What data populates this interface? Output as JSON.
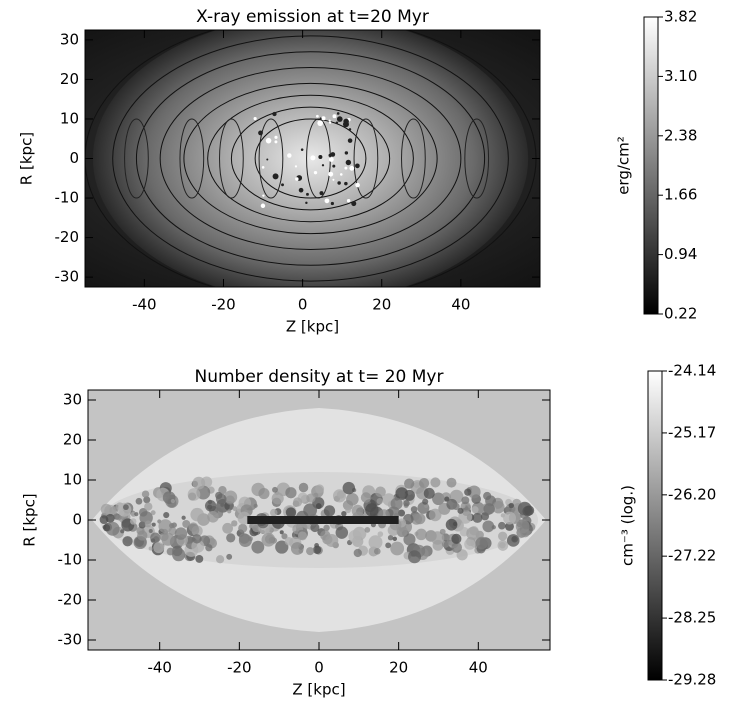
{
  "chart_data": [
    {
      "type": "heatmap",
      "title": "X-ray emission at t=20 Myr",
      "x_label": "Z [kpc]",
      "y_label": "R [kpc]",
      "xlim": [
        -55,
        60
      ],
      "ylim": [
        -32.5,
        32.5
      ],
      "xticks": [
        -40,
        -20,
        0,
        20,
        40
      ],
      "yticks": [
        -30,
        -20,
        -10,
        0,
        10,
        20,
        30
      ],
      "colormap": "gray",
      "colorbar": {
        "label": "erg/cm²",
        "lim": [
          0.22,
          3.82
        ],
        "ticks": [
          0.22,
          0.94,
          1.66,
          2.38,
          {
            "value": 3.1,
            "label": "3.10"
          },
          3.82
        ]
      }
    },
    {
      "type": "heatmap",
      "title": "Number density at t= 20 Myr",
      "x_label": "Z [kpc]",
      "y_label": "R [kpc]",
      "xlim": [
        -58,
        58
      ],
      "ylim": [
        -32.5,
        32.5
      ],
      "xticks": [
        -40,
        -20,
        0,
        20,
        40
      ],
      "yticks": [
        -30,
        -20,
        -10,
        0,
        10,
        20,
        30
      ],
      "colormap": "gray",
      "colorbar": {
        "label": "cm⁻³ (log.)",
        "lim": [
          -29.28,
          -24.14
        ],
        "ticks": [
          -29.28,
          -28.25,
          -27.22,
          {
            "value": -26.2,
            "label": "-26.20"
          },
          -25.17,
          -24.14
        ]
      }
    }
  ]
}
